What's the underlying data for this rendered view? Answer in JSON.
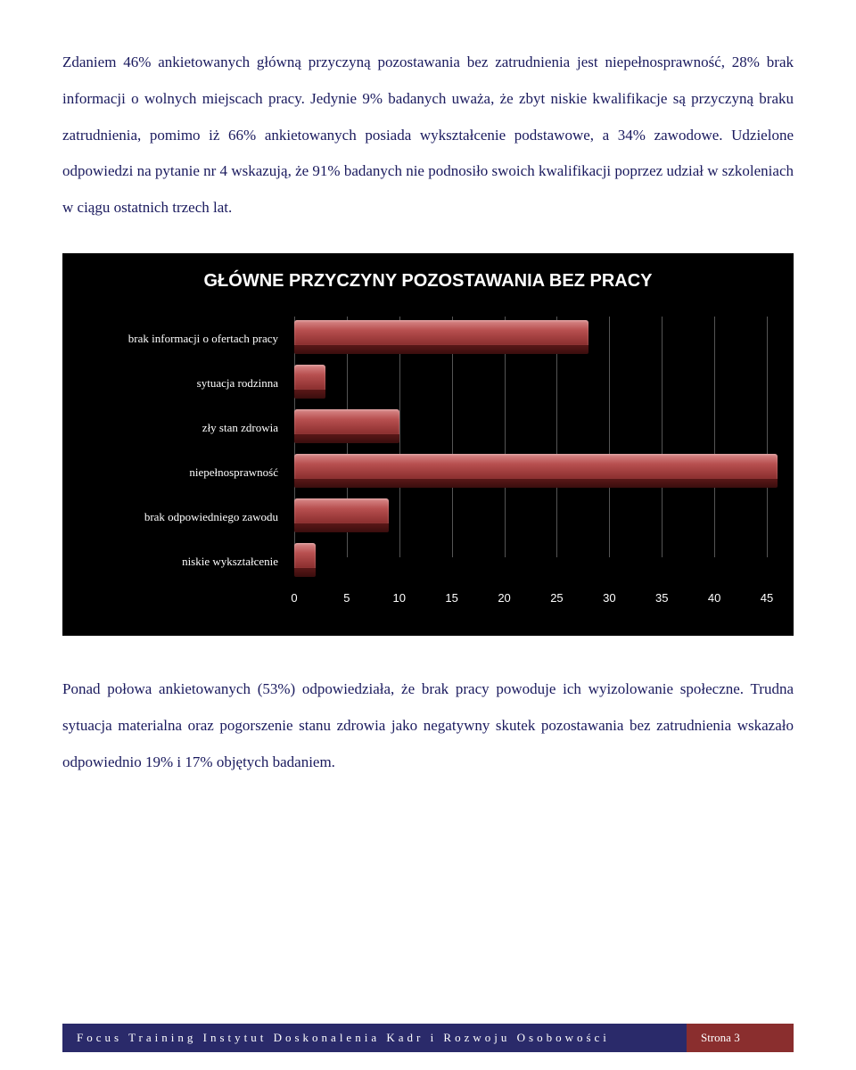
{
  "paragraphs": {
    "p1": "Zdaniem 46% ankietowanych główną przyczyną pozostawania bez zatrudnienia jest niepełnosprawność, 28% brak informacji o wolnych miejscach pracy. Jedynie 9% badanych uważa, że zbyt niskie kwalifikacje są przyczyną braku zatrudnienia, pomimo iż 66% ankietowanych posiada wykształcenie podstawowe, a 34% zawodowe. Udzielone odpowiedzi na pytanie nr 4 wskazują, że 91% badanych nie podnosiło swoich kwalifikacji poprzez udział w szkoleniach w ciągu ostatnich trzech lat.",
    "p2": "Ponad połowa ankietowanych (53%) odpowiedziała, że brak pracy powoduje ich wyizolowanie społeczne. Trudna sytuacja materialna oraz pogorszenie stanu zdrowia jako negatywny skutek pozostawania bez zatrudnienia wskazało odpowiednio 19% i 17% objętych badaniem."
  },
  "chart": {
    "title": "GŁÓWNE PRZYCZYNY POZOSTAWANIA BEZ PRACY",
    "type": "bar-horizontal-3d",
    "background_color": "#000000",
    "bar_color_top": "#d98b8b",
    "bar_color_mid": "#b85050",
    "bar_color_bottom": "#8a2e2e",
    "grid_color": "#555555",
    "text_color": "#ffffff",
    "title_fontsize": 20,
    "label_fontsize": 13,
    "xlim": [
      0,
      45
    ],
    "xtick_step": 5,
    "xticks": [
      0,
      5,
      10,
      15,
      20,
      25,
      30,
      35,
      40,
      45
    ],
    "categories": [
      {
        "label": "brak informacji o ofertach pracy",
        "value": 28
      },
      {
        "label": "sytuacja rodzinna",
        "value": 3
      },
      {
        "label": "zły stan zdrowia",
        "value": 10
      },
      {
        "label": "niepełnosprawność",
        "value": 46
      },
      {
        "label": "brak odpowiedniego zawodu",
        "value": 9
      },
      {
        "label": "niskie wykształcenie",
        "value": 2
      }
    ]
  },
  "footer": {
    "left": "Focus Training Instytut Doskonalenia Kadr i Rozwoju Osobowości",
    "right": "Strona 3"
  },
  "colors": {
    "body_text": "#1a1a5e",
    "footer_left_bg": "#2a2a6a",
    "footer_right_bg": "#8a2e2e"
  }
}
